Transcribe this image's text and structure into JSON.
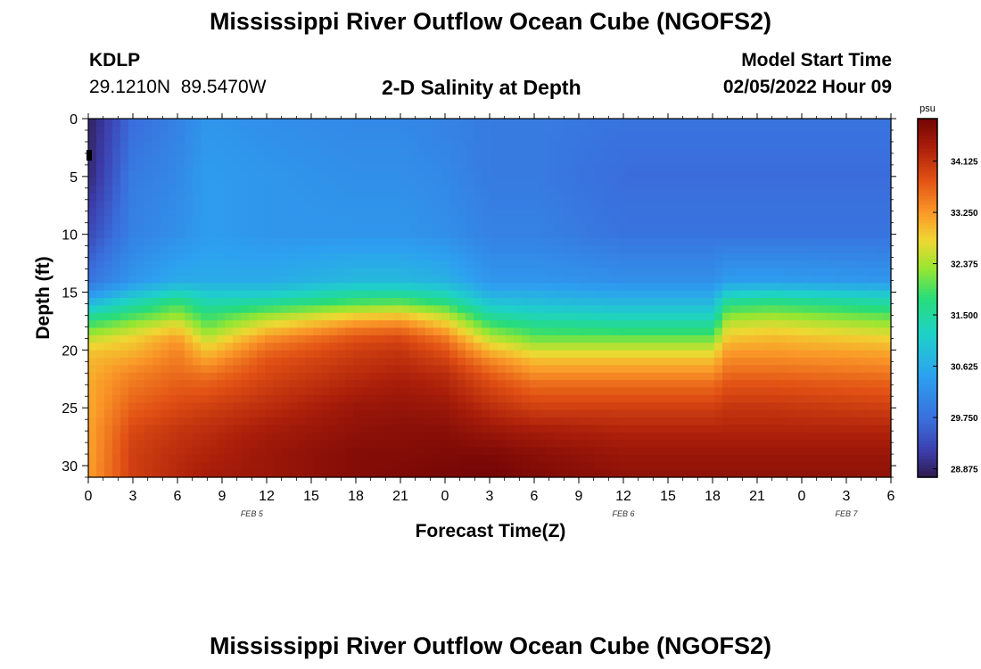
{
  "title": "Mississippi River Outflow Ocean Cube (NGOFS2)",
  "title_bottom": "Mississippi River Outflow Ocean Cube (NGOFS2)",
  "station": {
    "id": "KDLP",
    "coords": "29.1210N  89.5470W"
  },
  "plot_title": "2-D Salinity at Depth",
  "model_start": {
    "label": "Model Start Time",
    "value": "02/05/2022 Hour 09"
  },
  "chart_data": {
    "type": "heatmap",
    "title": "2-D Salinity at Depth",
    "xlabel": "Forecast Time(Z)",
    "ylabel": "Depth (ft)",
    "x_tick_labels": [
      "0",
      "3",
      "6",
      "9",
      "12",
      "15",
      "18",
      "21",
      "0",
      "3",
      "6",
      "9",
      "12",
      "15",
      "18",
      "21",
      "0",
      "3",
      "6"
    ],
    "x_range_hours": [
      0,
      54
    ],
    "date_labels": [
      {
        "label": "FEB 5",
        "hour": 11
      },
      {
        "label": "FEB 6",
        "hour": 36
      },
      {
        "label": "FEB 7",
        "hour": 51
      }
    ],
    "y_ticks": [
      0,
      5,
      10,
      15,
      20,
      25,
      30
    ],
    "y_range": [
      0,
      31
    ],
    "y_inverted": true,
    "colorbar": {
      "unit": "psu",
      "ticks": [
        "34.125",
        "33.250",
        "32.375",
        "31.500",
        "30.625",
        "29.750",
        "28.875"
      ],
      "range": [
        28.73,
        34.85
      ]
    },
    "salinity_profiles": {
      "depths": [
        0,
        5,
        10,
        14,
        15,
        16,
        17,
        18,
        19,
        20,
        21,
        22,
        23,
        25,
        27,
        29,
        31
      ],
      "columns": [
        {
          "hour": 0,
          "values": [
            28.8,
            28.9,
            29.3,
            29.8,
            30.2,
            30.8,
            31.5,
            32.0,
            32.5,
            32.9,
            33.0,
            33.05,
            33.1,
            33.1,
            33.15,
            33.15,
            33.2
          ]
        },
        {
          "hour": 3,
          "values": [
            29.7,
            29.9,
            30.0,
            30.3,
            30.8,
            31.4,
            31.9,
            32.4,
            32.8,
            33.0,
            33.2,
            33.4,
            33.5,
            33.7,
            33.9,
            34.0,
            34.0
          ]
        },
        {
          "hour": 6,
          "values": [
            30.0,
            30.1,
            30.2,
            30.6,
            31.2,
            31.9,
            32.3,
            32.8,
            33.2,
            33.4,
            33.5,
            33.6,
            33.7,
            33.9,
            34.1,
            34.2,
            34.25
          ]
        },
        {
          "hour": 8,
          "values": [
            30.3,
            30.4,
            30.4,
            30.6,
            31.0,
            31.4,
            31.8,
            32.1,
            32.5,
            32.9,
            33.2,
            33.5,
            33.7,
            34.0,
            34.2,
            34.3,
            34.4
          ]
        },
        {
          "hour": 12,
          "values": [
            30.2,
            30.3,
            30.3,
            30.6,
            31.0,
            31.6,
            32.3,
            32.8,
            33.3,
            33.6,
            33.8,
            33.9,
            34.0,
            34.2,
            34.4,
            34.5,
            34.5
          ]
        },
        {
          "hour": 18,
          "values": [
            30.1,
            30.2,
            30.3,
            30.8,
            31.4,
            32.0,
            32.8,
            33.4,
            33.8,
            34.0,
            34.1,
            34.2,
            34.3,
            34.5,
            34.6,
            34.7,
            34.7
          ]
        },
        {
          "hour": 21,
          "values": [
            30.1,
            30.2,
            30.3,
            30.8,
            31.4,
            32.1,
            32.9,
            33.5,
            33.9,
            34.1,
            34.2,
            34.3,
            34.4,
            34.55,
            34.65,
            34.7,
            34.75
          ]
        },
        {
          "hour": 24,
          "values": [
            30.0,
            30.1,
            30.2,
            30.7,
            31.2,
            31.8,
            32.5,
            33.0,
            33.5,
            33.8,
            34.0,
            34.2,
            34.3,
            34.5,
            34.65,
            34.75,
            34.8
          ]
        },
        {
          "hour": 27,
          "values": [
            29.9,
            29.9,
            30.0,
            30.3,
            30.6,
            31.0,
            31.5,
            32.0,
            32.5,
            33.0,
            33.4,
            33.7,
            33.9,
            34.2,
            34.5,
            34.75,
            34.85
          ]
        },
        {
          "hour": 30,
          "values": [
            29.9,
            29.9,
            30.0,
            30.3,
            30.6,
            30.9,
            31.3,
            31.7,
            32.1,
            32.6,
            33.0,
            33.3,
            33.6,
            34.0,
            34.4,
            34.65,
            34.75
          ]
        },
        {
          "hour": 36,
          "values": [
            29.8,
            29.7,
            29.8,
            30.2,
            30.5,
            30.8,
            31.2,
            31.6,
            32.1,
            32.6,
            33.0,
            33.3,
            33.6,
            34.0,
            34.3,
            34.5,
            34.6
          ]
        },
        {
          "hour": 42,
          "values": [
            29.8,
            29.7,
            29.8,
            30.2,
            30.5,
            30.8,
            31.2,
            31.6,
            32.1,
            32.6,
            33.0,
            33.3,
            33.6,
            34.0,
            34.3,
            34.5,
            34.6
          ]
        },
        {
          "hour": 43,
          "values": [
            29.8,
            29.7,
            29.8,
            30.4,
            31.0,
            31.7,
            32.2,
            32.6,
            32.9,
            33.2,
            33.4,
            33.6,
            33.8,
            34.1,
            34.3,
            34.5,
            34.6
          ]
        },
        {
          "hour": 46,
          "values": [
            29.8,
            29.7,
            29.8,
            30.4,
            31.1,
            31.8,
            32.3,
            32.7,
            33.0,
            33.2,
            33.4,
            33.6,
            33.8,
            34.1,
            34.3,
            34.5,
            34.6
          ]
        },
        {
          "hour": 54,
          "values": [
            29.8,
            29.7,
            29.8,
            30.3,
            30.9,
            31.5,
            32.0,
            32.4,
            32.8,
            33.1,
            33.3,
            33.5,
            33.7,
            34.0,
            34.3,
            34.5,
            34.6
          ]
        }
      ]
    }
  },
  "colors": {
    "background": "#ffffff",
    "axis": "#000000"
  }
}
